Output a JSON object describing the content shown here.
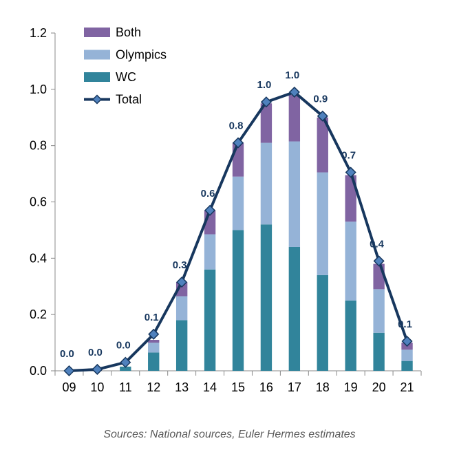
{
  "chart_data": {
    "type": "bar",
    "stacked": true,
    "categories": [
      "09",
      "10",
      "11",
      "12",
      "13",
      "14",
      "15",
      "16",
      "17",
      "18",
      "19",
      "20",
      "21"
    ],
    "series": [
      {
        "name": "WC",
        "color": "#31849b",
        "values": [
          0.0,
          0.0,
          0.015,
          0.065,
          0.18,
          0.36,
          0.5,
          0.52,
          0.44,
          0.34,
          0.25,
          0.135,
          0.035
        ]
      },
      {
        "name": "Olympics",
        "color": "#95b3d7",
        "values": [
          0.0,
          0.0,
          0.0,
          0.035,
          0.085,
          0.125,
          0.19,
          0.29,
          0.375,
          0.365,
          0.28,
          0.155,
          0.04
        ]
      },
      {
        "name": "Both",
        "color": "#8064a2",
        "values": [
          0.0,
          0.0,
          0.0,
          0.01,
          0.05,
          0.085,
          0.12,
          0.14,
          0.165,
          0.195,
          0.165,
          0.09,
          0.025
        ]
      }
    ],
    "line": {
      "name": "Total",
      "color": "#17375e",
      "values": [
        0.0,
        0.005,
        0.03,
        0.13,
        0.315,
        0.57,
        0.81,
        0.955,
        0.99,
        0.905,
        0.705,
        0.39,
        0.105
      ],
      "labels": [
        "0.0",
        "0.0",
        "0.0",
        "0.1",
        "0.3",
        "0.6",
        "0.8",
        "1.0",
        "1.0",
        "0.9",
        "0.7",
        "0.4",
        "0.1"
      ]
    },
    "yticks": [
      "0.0",
      "0.2",
      "0.4",
      "0.6",
      "0.8",
      "1.0",
      "1.2"
    ],
    "ylim": [
      0,
      1.2
    ],
    "legend": [
      {
        "name": "Both",
        "kind": "box",
        "color": "#8064a2"
      },
      {
        "name": "Olympics",
        "kind": "box",
        "color": "#95b3d7"
      },
      {
        "name": "WC",
        "kind": "box",
        "color": "#31849b"
      },
      {
        "name": "Total",
        "kind": "line",
        "color": "#17375e"
      }
    ],
    "legend_position": "top-left",
    "grid": false
  },
  "source_note": "Sources: National sources, Euler Hermes estimates"
}
